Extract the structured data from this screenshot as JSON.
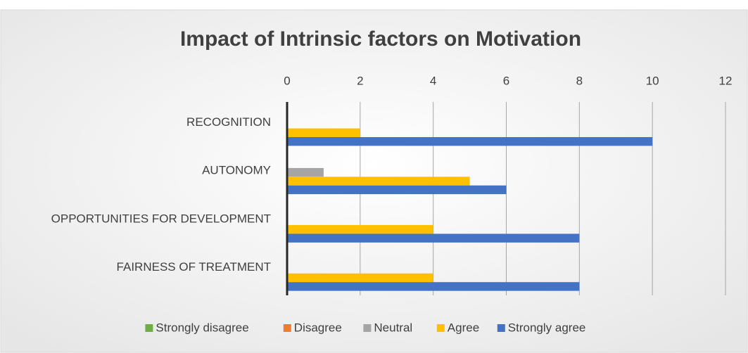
{
  "chart_data": {
    "type": "bar",
    "orientation": "horizontal",
    "title": "Impact of Intrinsic factors on Motivation",
    "categories": [
      "RECOGNITION",
      "AUTONOMY",
      "OPPORTUNITIES FOR DEVELOPMENT",
      "FAIRNESS OF TREATMENT"
    ],
    "series": [
      {
        "name": "Strongly disagree",
        "color": "#70ad47",
        "values": [
          0,
          0,
          0,
          0
        ]
      },
      {
        "name": "Disagree",
        "color": "#ed7d31",
        "values": [
          0,
          0,
          0,
          0
        ]
      },
      {
        "name": "Neutral",
        "color": "#a5a5a5",
        "values": [
          0,
          1,
          0,
          0
        ]
      },
      {
        "name": "Agree",
        "color": "#ffc000",
        "values": [
          2,
          5,
          4,
          4
        ]
      },
      {
        "name": "Strongly agree",
        "color": "#4472c4",
        "values": [
          10,
          6,
          8,
          8
        ]
      }
    ],
    "xlim": [
      0,
      12
    ],
    "xticks": [
      0,
      2,
      4,
      6,
      8,
      10,
      12
    ],
    "grid": true,
    "legend": "bottom"
  }
}
